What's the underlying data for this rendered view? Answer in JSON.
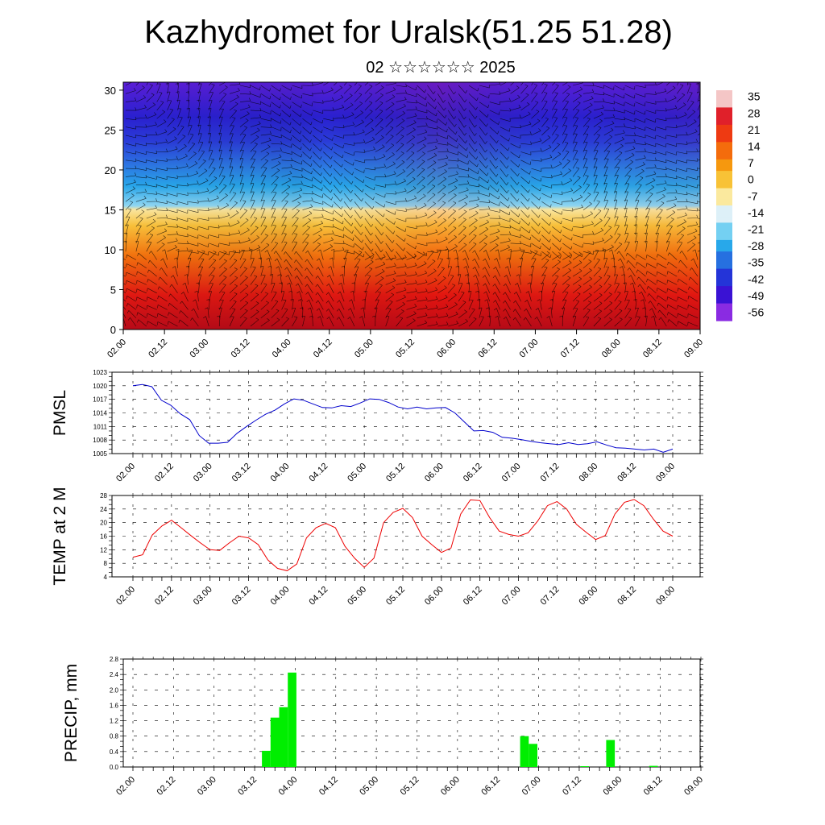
{
  "title": "Kazhydromet for Uralsk(51.25 51.28)",
  "subtitle": "02 ☆☆☆☆☆☆ 2025",
  "time_labels": [
    "02.00",
    "02.12",
    "03.00",
    "03.12",
    "04.00",
    "04.12",
    "05.00",
    "05.12",
    "06.00",
    "06.12",
    "07.00",
    "07.12",
    "08.00",
    "08.12",
    "09.00"
  ],
  "chart_data": [
    {
      "type": "heatmap",
      "title": "",
      "xlabel": "",
      "ylabel": "",
      "x": [
        "02.00",
        "02.12",
        "03.00",
        "03.12",
        "04.00",
        "04.12",
        "05.00",
        "05.12",
        "06.00",
        "06.12",
        "07.00",
        "07.12",
        "08.00",
        "08.12",
        "09.00"
      ],
      "ylim": [
        0,
        31
      ],
      "yticks": [
        0,
        5,
        10,
        15,
        20,
        25,
        30
      ],
      "colorbar_labels": [
        "35",
        "28",
        "21",
        "14",
        "7",
        "0",
        "-7",
        "-14",
        "-21",
        "-28",
        "-35",
        "-42",
        "-49",
        "-56"
      ],
      "colorbar_colors": [
        "#f4c6c6",
        "#e0202a",
        "#ee3a12",
        "#f46c0c",
        "#f6980e",
        "#f8c236",
        "#fbe99e",
        "#ddf0f8",
        "#74d0f2",
        "#28a8ea",
        "#2670e0",
        "#2434d8",
        "#3a12d4",
        "#8a2be2"
      ],
      "profile_temperature_c": {
        "z": [
          0,
          5,
          10,
          15,
          20,
          25,
          30
        ],
        "values": [
          20,
          16,
          6,
          -10,
          -40,
          -54,
          -52
        ]
      },
      "overlay": "wind barbs"
    },
    {
      "type": "line",
      "ylabel": "PMSL",
      "ylim": [
        1005,
        1023
      ],
      "yticks": [
        "1005",
        "1008",
        "1011",
        "1014",
        "1017",
        "1020",
        "1023"
      ],
      "color": "#0000cc",
      "series": [
        {
          "values": [
            1020.0,
            1020.3,
            1019.8,
            1016.8,
            1015.7,
            1013.8,
            1012.5,
            1009.0,
            1007.3,
            1007.3,
            1007.5,
            1009.5,
            1011.0,
            1012.4,
            1013.7,
            1014.6,
            1016.0,
            1017.1,
            1016.8,
            1016.0,
            1015.2,
            1015.1,
            1015.6,
            1015.4,
            1016.2,
            1017.1,
            1017.0,
            1016.3,
            1015.3,
            1014.9,
            1015.3,
            1014.9,
            1015.1,
            1015.2,
            1014.0,
            1012.0,
            1010.0,
            1010.1,
            1009.7,
            1008.6,
            1008.4,
            1008.1,
            1007.7,
            1007.4,
            1007.2,
            1007.0,
            1007.4,
            1007.0,
            1007.2,
            1007.6,
            1006.9,
            1006.3,
            1006.2,
            1006.0,
            1005.8,
            1006.0,
            1005.3,
            1006.0
          ]
        }
      ]
    },
    {
      "type": "line",
      "ylabel": "TEMP at 2 M",
      "ylim": [
        4,
        28
      ],
      "yticks": [
        "4",
        "8",
        "12",
        "16",
        "20",
        "24",
        "28"
      ],
      "color": "#ee0000",
      "series": [
        {
          "values": [
            9.8,
            10.5,
            16.3,
            19.0,
            20.7,
            18.5,
            16.2,
            14.0,
            12.0,
            11.8,
            14.0,
            16.0,
            15.5,
            13.5,
            9.0,
            6.5,
            5.8,
            7.8,
            15.5,
            18.5,
            19.8,
            18.5,
            13.0,
            9.5,
            6.8,
            9.5,
            20.0,
            23.0,
            24.2,
            21.5,
            16.0,
            13.5,
            11.2,
            12.5,
            22.5,
            26.7,
            26.5,
            21.5,
            17.5,
            16.5,
            16.0,
            17.0,
            20.5,
            25.0,
            26.2,
            24.0,
            19.5,
            17.2,
            15.0,
            16.2,
            22.5,
            26.0,
            26.8,
            25.0,
            21.0,
            17.5,
            16.0
          ]
        }
      ]
    },
    {
      "type": "bar",
      "ylabel": "PRECIP, mm",
      "ylim": [
        0,
        2.8
      ],
      "yticks": [
        "0.0",
        "0.4",
        "0.8",
        "1.2",
        "1.6",
        "2.0",
        "2.4",
        "2.8"
      ],
      "color": "#00ee00",
      "values": [
        0,
        0,
        0,
        0,
        0,
        0,
        0,
        0,
        0,
        0.42,
        1.28,
        1.55,
        2.45,
        0,
        0,
        0,
        0,
        0,
        0,
        0,
        0,
        0,
        0,
        0,
        0,
        0,
        0,
        0,
        0,
        0,
        0,
        0,
        0,
        0,
        0,
        0,
        0,
        0,
        0,
        0.8,
        0.6,
        0,
        0,
        0,
        0,
        0,
        0.02,
        0,
        0,
        0.7,
        0,
        0,
        0,
        0,
        0.03,
        0
      ]
    }
  ]
}
